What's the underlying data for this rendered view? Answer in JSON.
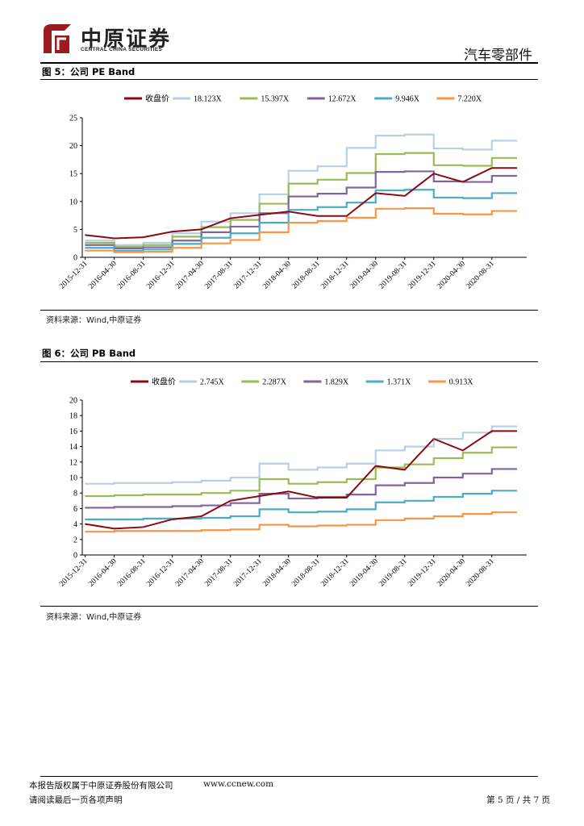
{
  "header": {
    "company_cn": "中原证券",
    "company_en": "CENTRAL CHINA SECURITIES",
    "sector": "汽车零部件",
    "brand_color": "#9b1b1f"
  },
  "figures": [
    {
      "title": "图 5：公司 PE Band",
      "source": "资料来源：Wind,中原证券"
    },
    {
      "title": "图 6：公司 PB Band",
      "source": "资料来源：Wind,中原证券"
    }
  ],
  "footer": {
    "copyright": "本报告版权属于中原证券股份有限公司",
    "website": "www.ccnew.com",
    "disclaimer": "请阅读最后一页各项声明",
    "page": "第 5 页 / 共 7 页"
  },
  "chart_data": [
    {
      "type": "line",
      "title": "公司 PE Band",
      "x": [
        "2015-12-31",
        "2016-04-30",
        "2016-08-31",
        "2016-12-31",
        "2017-04-30",
        "2017-08-31",
        "2017-12-31",
        "2018-04-30",
        "2018-08-31",
        "2018-12-31",
        "2019-04-30",
        "2019-08-31",
        "2019-12-31",
        "2020-04-30",
        "2020-08-31"
      ],
      "ylim": [
        0,
        25
      ],
      "yticks": [
        0,
        5,
        10,
        15,
        20,
        25
      ],
      "legend": "top",
      "series": [
        {
          "name": "收盘价",
          "color": "#8b0a12",
          "values": [
            4.0,
            3.4,
            3.6,
            4.6,
            5.0,
            7.0,
            7.6,
            8.2,
            7.4,
            7.4,
            11.5,
            11.0,
            15.0,
            13.5,
            16.0
          ]
        },
        {
          "name": "18.123X",
          "color": "#b8cfe6",
          "values": [
            3.0,
            2.2,
            2.6,
            4.3,
            6.4,
            7.9,
            11.3,
            15.5,
            16.3,
            19.6,
            21.8,
            22.0,
            19.5,
            19.3,
            20.9
          ]
        },
        {
          "name": "15.397X",
          "color": "#9bbb59",
          "values": [
            2.6,
            1.9,
            2.2,
            3.7,
            5.4,
            6.7,
            9.6,
            13.2,
            13.9,
            15.1,
            18.5,
            18.7,
            16.5,
            16.4,
            17.8
          ]
        },
        {
          "name": "12.672X",
          "color": "#8064a2",
          "values": [
            2.2,
            1.6,
            1.8,
            3.0,
            4.5,
            5.5,
            7.9,
            10.9,
            11.4,
            12.5,
            15.3,
            15.4,
            13.6,
            13.5,
            14.6
          ]
        },
        {
          "name": "9.946X",
          "color": "#4bacc6",
          "values": [
            1.7,
            1.2,
            1.4,
            2.4,
            3.5,
            4.3,
            6.2,
            8.5,
            9.0,
            9.8,
            12.0,
            12.1,
            10.7,
            10.6,
            11.5
          ]
        },
        {
          "name": "7.220X",
          "color": "#f79646",
          "values": [
            1.2,
            0.9,
            1.0,
            1.7,
            2.5,
            3.1,
            4.5,
            6.2,
            6.5,
            7.1,
            8.7,
            8.8,
            7.8,
            7.7,
            8.3
          ]
        }
      ]
    },
    {
      "type": "line",
      "title": "公司 PB Band",
      "x": [
        "2015-12-31",
        "2016-04-30",
        "2016-08-31",
        "2016-12-31",
        "2017-04-30",
        "2017-08-31",
        "2017-12-31",
        "2018-04-30",
        "2018-08-31",
        "2018-12-31",
        "2019-04-30",
        "2019-08-31",
        "2019-12-31",
        "2020-04-30",
        "2020-08-31"
      ],
      "ylim": [
        0,
        20
      ],
      "yticks": [
        0,
        2,
        4,
        6,
        8,
        10,
        12,
        14,
        16,
        18,
        20
      ],
      "legend": "top",
      "series": [
        {
          "name": "收盘价",
          "color": "#8b0a12",
          "values": [
            4.0,
            3.4,
            3.6,
            4.6,
            5.0,
            7.0,
            7.6,
            8.2,
            7.4,
            7.4,
            11.5,
            11.0,
            15.0,
            13.5,
            16.0
          ]
        },
        {
          "name": "2.745X",
          "color": "#b8cfe6",
          "values": [
            9.2,
            9.3,
            9.3,
            9.4,
            9.6,
            10.0,
            11.8,
            11.0,
            11.3,
            11.8,
            13.5,
            14.0,
            15.0,
            15.8,
            16.6
          ]
        },
        {
          "name": "2.287X",
          "color": "#9bbb59",
          "values": [
            7.6,
            7.7,
            7.8,
            7.8,
            8.0,
            8.3,
            9.8,
            9.2,
            9.4,
            9.8,
            11.3,
            11.7,
            12.5,
            13.2,
            13.9
          ]
        },
        {
          "name": "1.829X",
          "color": "#8064a2",
          "values": [
            6.1,
            6.2,
            6.2,
            6.3,
            6.4,
            6.7,
            7.9,
            7.3,
            7.5,
            7.8,
            9.0,
            9.3,
            10.0,
            10.5,
            11.1
          ]
        },
        {
          "name": "1.371X",
          "color": "#4bacc6",
          "values": [
            4.6,
            4.6,
            4.7,
            4.7,
            4.8,
            5.0,
            5.9,
            5.5,
            5.6,
            5.9,
            6.8,
            7.0,
            7.5,
            7.9,
            8.3
          ]
        },
        {
          "name": "0.913X",
          "color": "#f79646",
          "values": [
            3.0,
            3.1,
            3.1,
            3.1,
            3.2,
            3.3,
            3.9,
            3.7,
            3.8,
            3.9,
            4.5,
            4.7,
            5.0,
            5.3,
            5.5
          ]
        }
      ]
    }
  ]
}
